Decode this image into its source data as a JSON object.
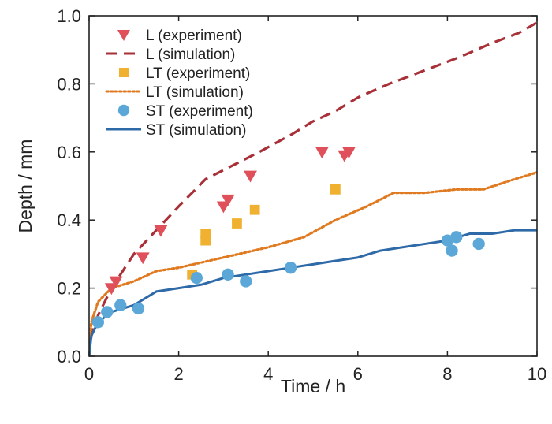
{
  "chart_data": {
    "type": "scatter",
    "xlabel": "Time / h",
    "ylabel": "Depth / mm",
    "xlim": [
      0,
      10
    ],
    "ylim": [
      0,
      1.0
    ],
    "xticks": [
      "0",
      "2",
      "4",
      "6",
      "8",
      "10"
    ],
    "yticks": [
      "0.0",
      "0.2",
      "0.4",
      "0.6",
      "0.8",
      "1.0"
    ],
    "grid": false,
    "legend_position": "top-left",
    "colors": {
      "L": "#e0505a",
      "L_line": "#a83038",
      "LT": "#f0b030",
      "LT_line": "#e07a20",
      "ST": "#5ba8d8",
      "ST_line": "#2e6aa8"
    },
    "series": [
      {
        "name": "L (experiment)",
        "kind": "marker",
        "marker": "triangle-down",
        "color_key": "L",
        "x": [
          0.5,
          0.6,
          1.2,
          1.6,
          3.0,
          3.1,
          3.6,
          5.2,
          5.7,
          5.8
        ],
        "y": [
          0.2,
          0.22,
          0.29,
          0.37,
          0.44,
          0.46,
          0.53,
          0.6,
          0.59,
          0.6
        ]
      },
      {
        "name": "L (simulation)",
        "kind": "line",
        "dash": "dashed",
        "color_key": "L_line",
        "x": [
          0,
          0.05,
          0.2,
          0.5,
          1.0,
          1.5,
          2.0,
          2.6,
          3.2,
          3.8,
          4.5,
          5.0,
          5.5,
          6.0,
          6.7,
          7.5,
          8.3,
          9.0,
          9.6,
          10
        ],
        "y": [
          0,
          0.06,
          0.12,
          0.2,
          0.3,
          0.37,
          0.44,
          0.52,
          0.56,
          0.6,
          0.65,
          0.69,
          0.72,
          0.76,
          0.8,
          0.84,
          0.88,
          0.92,
          0.95,
          0.98
        ]
      },
      {
        "name": "LT (experiment)",
        "kind": "marker",
        "marker": "square",
        "color_key": "LT",
        "x": [
          2.3,
          2.6,
          2.6,
          3.3,
          3.7,
          5.5
        ],
        "y": [
          0.24,
          0.34,
          0.36,
          0.39,
          0.43,
          0.49
        ]
      },
      {
        "name": "LT (simulation)",
        "kind": "line",
        "dash": "dotted",
        "color_key": "LT_line",
        "x": [
          0,
          0.05,
          0.2,
          0.5,
          1.0,
          1.5,
          2.0,
          3.0,
          4.0,
          4.8,
          5.5,
          6.2,
          6.8,
          7.5,
          8.2,
          8.8,
          9.5,
          10
        ],
        "y": [
          0,
          0.1,
          0.16,
          0.2,
          0.22,
          0.25,
          0.26,
          0.29,
          0.32,
          0.35,
          0.4,
          0.44,
          0.48,
          0.48,
          0.49,
          0.49,
          0.52,
          0.54
        ]
      },
      {
        "name": "ST (experiment)",
        "kind": "marker",
        "marker": "circle",
        "color_key": "ST",
        "x": [
          0.2,
          0.4,
          0.7,
          1.1,
          2.4,
          3.1,
          3.5,
          4.5,
          8.0,
          8.1,
          8.2,
          8.7
        ],
        "y": [
          0.1,
          0.13,
          0.15,
          0.14,
          0.23,
          0.24,
          0.22,
          0.26,
          0.34,
          0.31,
          0.35,
          0.33
        ]
      },
      {
        "name": "ST (simulation)",
        "kind": "line",
        "dash": "solid",
        "color_key": "ST_line",
        "x": [
          0,
          0.05,
          0.2,
          0.5,
          1.0,
          1.5,
          2.0,
          2.5,
          3.0,
          3.5,
          4.0,
          4.5,
          5.0,
          5.5,
          6.0,
          6.5,
          7.0,
          7.5,
          8.0,
          8.5,
          9.0,
          9.5,
          10
        ],
        "y": [
          0,
          0.06,
          0.1,
          0.13,
          0.15,
          0.19,
          0.2,
          0.21,
          0.23,
          0.24,
          0.25,
          0.26,
          0.27,
          0.28,
          0.29,
          0.31,
          0.32,
          0.33,
          0.34,
          0.36,
          0.36,
          0.37,
          0.37
        ]
      }
    ]
  }
}
